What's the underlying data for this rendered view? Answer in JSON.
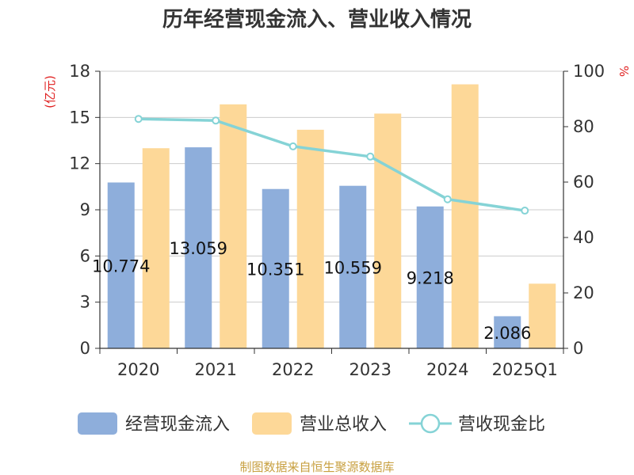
{
  "chart_data": {
    "type": "bar",
    "title": "历年经营现金流入、营业收入情况",
    "left_axis_unit": "(亿元)",
    "right_axis_unit": "%",
    "categories": [
      "2020",
      "2021",
      "2022",
      "2023",
      "2024",
      "2025Q1"
    ],
    "left_axis": {
      "ylim": [
        0,
        18
      ],
      "ticks": [
        0,
        3,
        6,
        9,
        12,
        15,
        18
      ]
    },
    "right_axis": {
      "ylim": [
        0,
        100
      ],
      "ticks": [
        0,
        20,
        40,
        60,
        80,
        100
      ]
    },
    "grid": true,
    "legend_position": "bottom",
    "series": [
      {
        "name": "经营现金流入",
        "kind": "bar",
        "axis": "left",
        "color": "#8eaedb",
        "values": [
          10.774,
          13.059,
          10.351,
          10.559,
          9.218,
          2.086
        ],
        "labels": [
          "10.774",
          "13.059",
          "10.351",
          "10.559",
          "9.218",
          "2.086"
        ]
      },
      {
        "name": "营业总收入",
        "kind": "bar",
        "axis": "left",
        "color": "#fdd898",
        "values": [
          13.0,
          15.85,
          14.2,
          15.25,
          17.15,
          4.2
        ]
      },
      {
        "name": "营收现金比",
        "kind": "line",
        "axis": "right",
        "color": "#85d3d6",
        "values": [
          82.8,
          82.2,
          72.9,
          69.2,
          53.8,
          49.7
        ]
      }
    ],
    "source": "制图数据来自恒生聚源数据库"
  }
}
